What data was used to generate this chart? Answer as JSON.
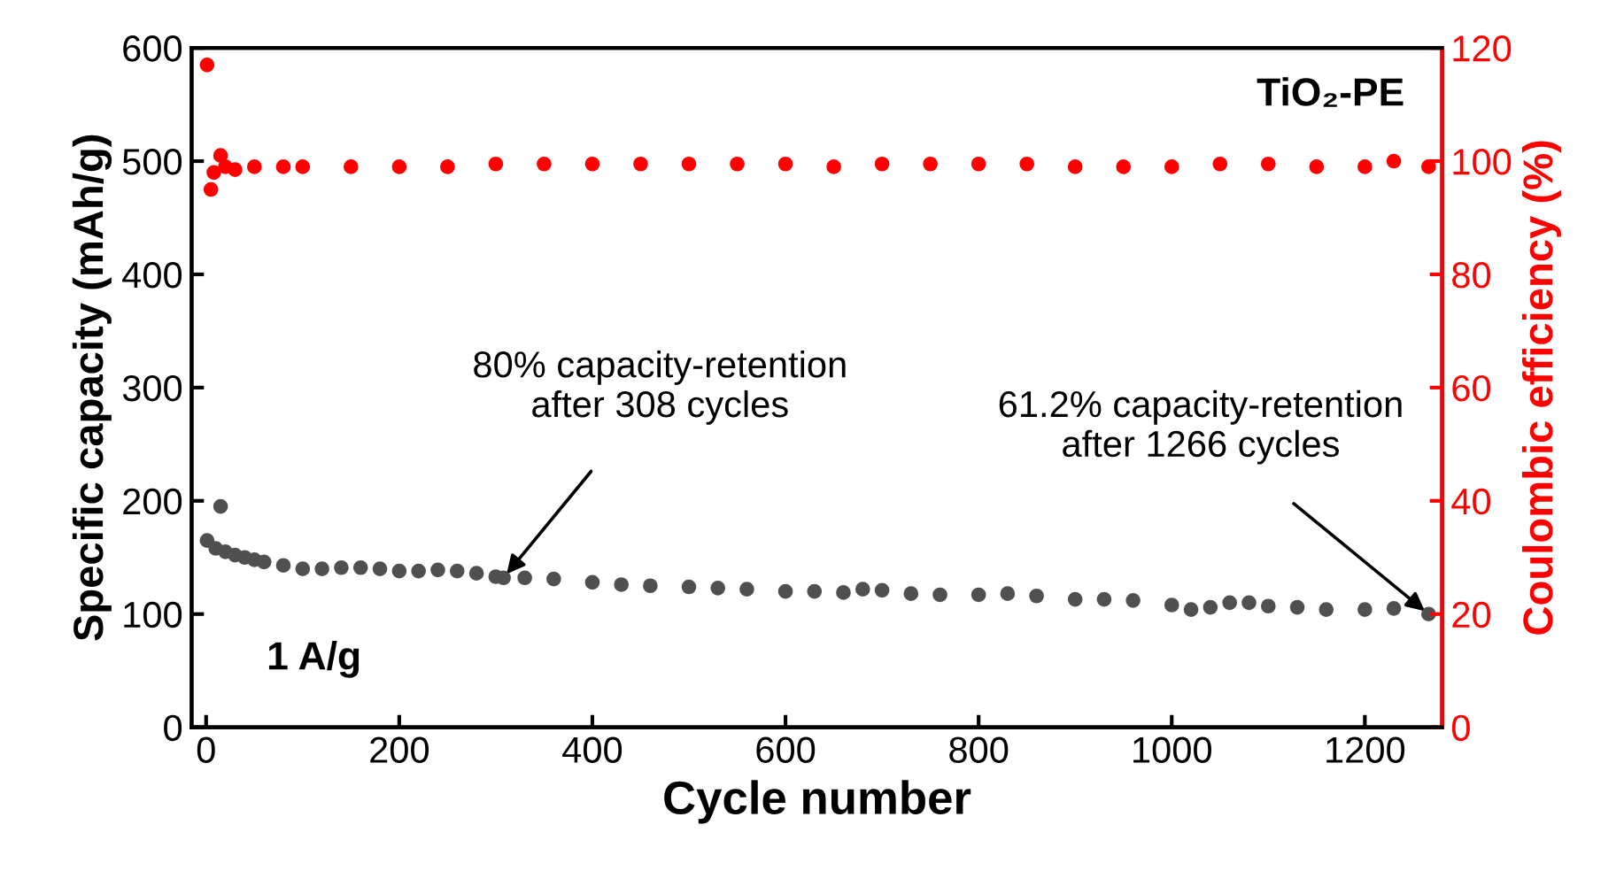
{
  "chart_data": {
    "type": "scatter",
    "xlabel": "Cycle number",
    "ylabel": "Specific capacity (mAh/g)",
    "y2label": "Coulombic efficiency (%)",
    "marker": "circle",
    "grid": false,
    "legend": false,
    "xlim": [
      -15,
      1280
    ],
    "xticks": [
      0,
      200,
      400,
      600,
      800,
      1000,
      1200
    ],
    "ylim": [
      0,
      600
    ],
    "yticks": [
      0,
      100,
      200,
      300,
      400,
      500,
      600
    ],
    "y2lim": [
      0,
      120
    ],
    "y2ticks": [
      0,
      20,
      40,
      60,
      80,
      100,
      120
    ],
    "series": [
      {
        "color": "#505050",
        "x": [
          1,
          10,
          15,
          20,
          30,
          40,
          50,
          60,
          80,
          100,
          120,
          140,
          160,
          180,
          200,
          220,
          240,
          260,
          280,
          300,
          308,
          330,
          360,
          400,
          430,
          460,
          500,
          530,
          560,
          600,
          630,
          660,
          680,
          700,
          730,
          760,
          800,
          830,
          860,
          900,
          930,
          960,
          1000,
          1020,
          1040,
          1060,
          1080,
          1100,
          1130,
          1160,
          1200,
          1230,
          1266
        ],
        "values": [
          165,
          158,
          195,
          155,
          152,
          150,
          148,
          146,
          143,
          140,
          140,
          141,
          141,
          140,
          138,
          138,
          139,
          138,
          136,
          133,
          132,
          132,
          131,
          128,
          126,
          125,
          124,
          123,
          122,
          120,
          120,
          119,
          122,
          121,
          118,
          117,
          117,
          118,
          116,
          113,
          113,
          112,
          108,
          104,
          106,
          110,
          110,
          107,
          106,
          104,
          104,
          105,
          100
        ]
      },
      {
        "color": "#ff0000",
        "axis": "y2",
        "x": [
          1,
          5,
          8,
          15,
          20,
          30,
          50,
          80,
          100,
          150,
          200,
          250,
          300,
          350,
          400,
          450,
          500,
          550,
          600,
          650,
          700,
          750,
          800,
          850,
          900,
          950,
          1000,
          1050,
          1100,
          1150,
          1200,
          1230,
          1266
        ],
        "values": [
          117,
          95,
          98,
          101,
          99,
          98.5,
          99,
          99,
          99,
          99,
          99,
          99,
          99.5,
          99.5,
          99.5,
          99.5,
          99.5,
          99.5,
          99.5,
          99,
          99.5,
          99.5,
          99.5,
          99.5,
          99,
          99,
          99,
          99.5,
          99.5,
          99,
          99,
          100,
          99
        ]
      }
    ],
    "annotations": [
      {
        "text": "80% capacity-retention\nafter 308 cycles",
        "x": 308,
        "y": 132
      },
      {
        "text": "61.2% capacity-retention\nafter 1266 cycles",
        "x": 1266,
        "y": 100
      },
      "1 A/g",
      "TiO₂-PE"
    ]
  }
}
